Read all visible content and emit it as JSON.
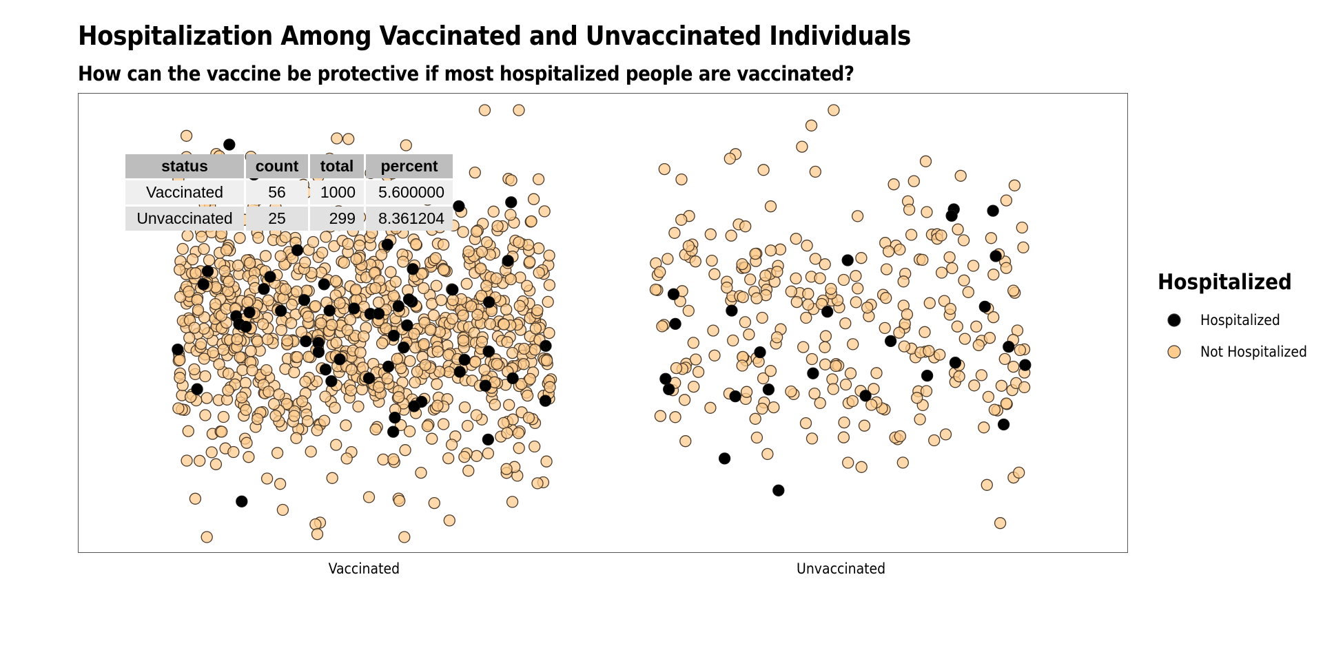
{
  "title": "Hospitalization Among Vaccinated and Unvaccinated Individuals",
  "subtitle": "How can the vaccine be protective if most hospitalized people are vaccinated?",
  "colors": {
    "hospitalized": "#000000",
    "not_hospitalized": "#FFCC8F",
    "point_stroke": "#4a3a2a",
    "panel_border": "#555555"
  },
  "legend": {
    "title": "Hospitalized",
    "position": "right",
    "items": [
      {
        "label": "Hospitalized",
        "color": "#000000"
      },
      {
        "label": "Not Hospitalized",
        "color": "#FFCC8F"
      }
    ]
  },
  "summary_table": {
    "headers": [
      "status",
      "count",
      "total",
      "percent"
    ],
    "rows": [
      [
        "Vaccinated",
        "56",
        "1000",
        "5.600000"
      ],
      [
        "Unvaccinated",
        "25",
        "299",
        "8.361204"
      ]
    ]
  },
  "chart_data": {
    "type": "scatter",
    "title": "Hospitalization Among Vaccinated and Unvaccinated Individuals",
    "subtitle": "How can the vaccine be protective if most hospitalized people are vaccinated?",
    "xlabel": "",
    "ylabel": "",
    "categories": [
      "Vaccinated",
      "Unvaccinated"
    ],
    "grid": false,
    "legend_position": "right",
    "series": [
      {
        "name": "Hospitalized",
        "category_counts": {
          "Vaccinated": 56,
          "Unvaccinated": 25
        }
      },
      {
        "name": "Not Hospitalized",
        "category_counts": {
          "Vaccinated": 944,
          "Unvaccinated": 274
        }
      }
    ]
  }
}
